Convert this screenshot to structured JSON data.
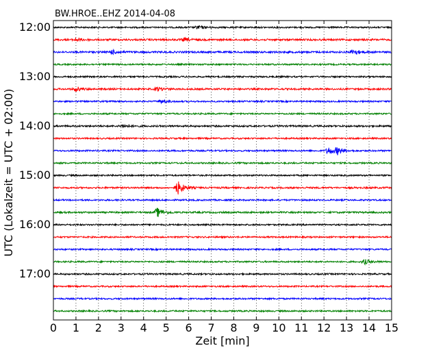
{
  "chart_data": {
    "type": "line",
    "title": "BW.HROE..EHZ 2014-04-08",
    "xlabel": "Zeit  [min]",
    "ylabel": "UTC (Lokalzeit = UTC + 02:00)",
    "xlim": [
      0,
      15
    ],
    "x_ticks": [
      "0",
      "1",
      "2",
      "3",
      "4",
      "5",
      "6",
      "7",
      "8",
      "9",
      "10",
      "11",
      "12",
      "13",
      "14",
      "15"
    ],
    "y_tick_labels": [
      "12:00",
      "13:00",
      "14:00",
      "15:00",
      "16:00",
      "17:00"
    ],
    "grid": "vertical dotted",
    "colors": [
      "#000000",
      "#ff0000",
      "#0000ff",
      "#008000"
    ],
    "traces": [
      {
        "start": "12:00",
        "color": "#000000",
        "amp": 1.0,
        "events": [
          {
            "t": 6.4,
            "a": 2.5
          }
        ]
      },
      {
        "start": "12:15",
        "color": "#ff0000",
        "amp": 1.2,
        "events": [
          {
            "t": 1.0,
            "a": 2.0
          },
          {
            "t": 5.8,
            "a": 2.0
          }
        ]
      },
      {
        "start": "12:30",
        "color": "#0000ff",
        "amp": 1.2,
        "events": [
          {
            "t": 2.6,
            "a": 2.5
          },
          {
            "t": 13.3,
            "a": 3.5
          }
        ]
      },
      {
        "start": "12:45",
        "color": "#008000",
        "amp": 1.0,
        "events": []
      },
      {
        "start": "13:00",
        "color": "#000000",
        "amp": 1.0,
        "events": []
      },
      {
        "start": "13:15",
        "color": "#ff0000",
        "amp": 1.1,
        "events": [
          {
            "t": 1.0,
            "a": 2.5
          },
          {
            "t": 4.6,
            "a": 2.5
          }
        ]
      },
      {
        "start": "13:30",
        "color": "#0000ff",
        "amp": 1.0,
        "events": [
          {
            "t": 4.8,
            "a": 2.0
          }
        ]
      },
      {
        "start": "13:45",
        "color": "#008000",
        "amp": 1.0,
        "events": []
      },
      {
        "start": "14:00",
        "color": "#000000",
        "amp": 1.1,
        "events": [
          {
            "t": 3.1,
            "a": 2.0
          }
        ]
      },
      {
        "start": "14:15",
        "color": "#ff0000",
        "amp": 1.0,
        "events": []
      },
      {
        "start": "14:30",
        "color": "#0000ff",
        "amp": 1.0,
        "events": [
          {
            "t": 12.2,
            "a": 5.0
          },
          {
            "t": 12.6,
            "a": 4.0
          }
        ]
      },
      {
        "start": "14:45",
        "color": "#008000",
        "amp": 1.0,
        "events": []
      },
      {
        "start": "15:00",
        "color": "#000000",
        "amp": 1.0,
        "events": []
      },
      {
        "start": "15:15",
        "color": "#ff0000",
        "amp": 1.1,
        "events": [
          {
            "t": 5.5,
            "a": 9.0
          }
        ]
      },
      {
        "start": "15:30",
        "color": "#0000ff",
        "amp": 1.0,
        "events": []
      },
      {
        "start": "15:45",
        "color": "#008000",
        "amp": 1.1,
        "events": [
          {
            "t": 4.6,
            "a": 6.0
          }
        ]
      },
      {
        "start": "16:00",
        "color": "#000000",
        "amp": 1.0,
        "events": []
      },
      {
        "start": "16:15",
        "color": "#ff0000",
        "amp": 1.0,
        "events": []
      },
      {
        "start": "16:30",
        "color": "#0000ff",
        "amp": 1.0,
        "events": []
      },
      {
        "start": "16:45",
        "color": "#008000",
        "amp": 1.0,
        "events": [
          {
            "t": 13.8,
            "a": 3.0
          }
        ]
      },
      {
        "start": "17:00",
        "color": "#000000",
        "amp": 1.0,
        "events": []
      },
      {
        "start": "17:15",
        "color": "#ff0000",
        "amp": 1.0,
        "events": []
      },
      {
        "start": "17:30",
        "color": "#0000ff",
        "amp": 1.0,
        "events": []
      },
      {
        "start": "17:45",
        "color": "#008000",
        "amp": 1.0,
        "events": []
      }
    ]
  }
}
